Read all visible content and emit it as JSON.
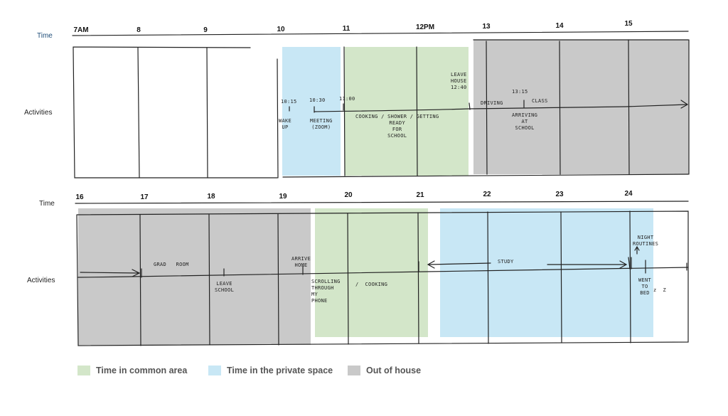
{
  "colors": {
    "common": "#d3e6c9",
    "private": "#c8e7f5",
    "out": "#c9c9c9",
    "ink": "#222222"
  },
  "row1": {
    "time_label": "Time",
    "activities_label": "Activities",
    "ticks": [
      "7AM",
      "8",
      "9",
      "10",
      "11",
      "12PM",
      "13",
      "14",
      "15"
    ],
    "notes": {
      "t1015": "10:15",
      "t1030": "10:30",
      "t1100": "11:00",
      "wake_up": "WAKE\nUP",
      "meeting": "MEETING\n(ZOOM)",
      "cooking": "COOKING / SHOWER / GETTING\nREADY\nFOR\nSCHOOL",
      "leave_house": "LEAVE\nHOUSE\n12:40",
      "t1315": "13:15",
      "driving": "DRIVING",
      "class": "CLASS",
      "arriving": "ARRIVING\nAT\nSCHOOL"
    }
  },
  "row2": {
    "time_label": "Time",
    "activities_label": "Activities",
    "ticks": [
      "16",
      "17",
      "18",
      "19",
      "20",
      "21",
      "22",
      "23",
      "24"
    ],
    "notes": {
      "grad_room": "GRAD   ROOM",
      "leave_school": "LEAVE\nSCHOOL",
      "arrive_home": "ARRIVE\nHOME",
      "scrolling": "SCROLLING\nTHROUGH\nMY\nPHONE",
      "cooking": "/  COOKING",
      "study": "STUDY",
      "night_routines": "NIGHT\nROUTINES",
      "went_to_bed": "WENT\nTO\nBED",
      "zz": "z  Z"
    }
  },
  "legend": [
    {
      "label": "Time in common area",
      "color": "#d3e6c9"
    },
    {
      "label": "Time in the private space",
      "color": "#c8e7f5"
    },
    {
      "label": "Out of house",
      "color": "#c9c9c9"
    }
  ]
}
